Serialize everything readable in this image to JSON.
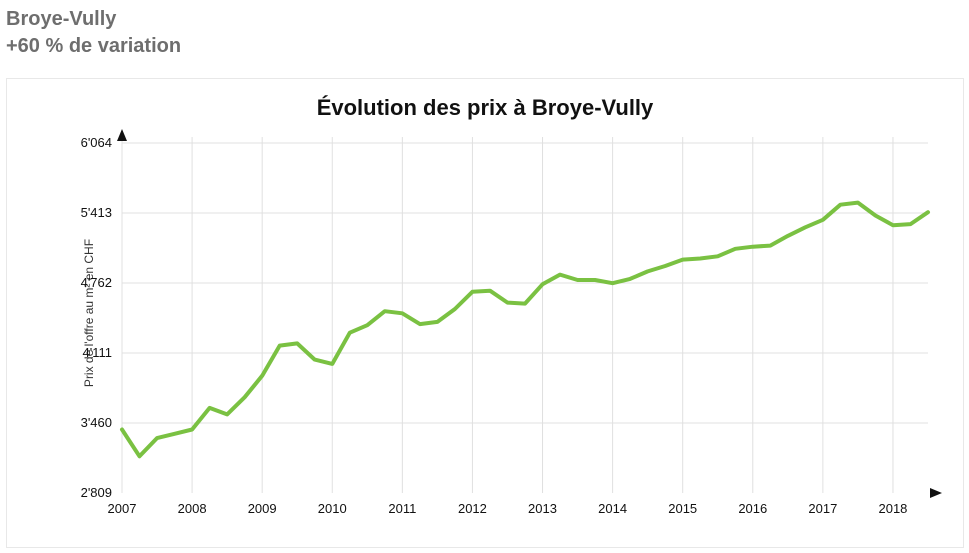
{
  "header": {
    "region_name": "Broye-Vully",
    "variation_text": "+60 % de variation",
    "text_color": "#6e6e6e"
  },
  "chart": {
    "type": "line",
    "title": "Évolution des prix à Broye-Vully",
    "title_fontsize": 22,
    "ylabel": "Prix de l'offre au m² en CHF",
    "label_fontsize": 12,
    "background_color": "#ffffff",
    "grid_color": "#e0e0e0",
    "border_color": "#e8e8e8",
    "line_color": "#7ac142",
    "line_width": 4,
    "xlim": [
      2007,
      2018.5
    ],
    "ylim": [
      2809,
      6064
    ],
    "yticks": [
      2809,
      3460,
      4111,
      4762,
      5413,
      6064
    ],
    "ytick_labels": [
      "2'809",
      "3'460",
      "4'111",
      "4'762",
      "5'413",
      "6'064"
    ],
    "xticks": [
      2007,
      2008,
      2009,
      2010,
      2011,
      2012,
      2013,
      2014,
      2015,
      2016,
      2017,
      2018
    ],
    "xtick_labels": [
      "2007",
      "2008",
      "2009",
      "2010",
      "2011",
      "2012",
      "2013",
      "2014",
      "2015",
      "2016",
      "2017",
      "2018"
    ],
    "series": {
      "x": [
        2007.0,
        2007.25,
        2007.5,
        2007.75,
        2008.0,
        2008.25,
        2008.5,
        2008.75,
        2009.0,
        2009.25,
        2009.5,
        2009.75,
        2010.0,
        2010.25,
        2010.5,
        2010.75,
        2011.0,
        2011.25,
        2011.5,
        2011.75,
        2012.0,
        2012.25,
        2012.5,
        2012.75,
        2013.0,
        2013.25,
        2013.5,
        2013.75,
        2014.0,
        2014.25,
        2014.5,
        2014.75,
        2015.0,
        2015.25,
        2015.5,
        2015.75,
        2016.0,
        2016.25,
        2016.5,
        2016.75,
        2017.0,
        2017.25,
        2017.5,
        2017.75,
        2018.0,
        2018.25,
        2018.5
      ],
      "y": [
        3400,
        3150,
        3320,
        3360,
        3400,
        3600,
        3540,
        3700,
        3900,
        4180,
        4200,
        4050,
        4010,
        4300,
        4370,
        4500,
        4480,
        4380,
        4400,
        4520,
        4680,
        4690,
        4580,
        4570,
        4750,
        4840,
        4790,
        4790,
        4760,
        4800,
        4870,
        4920,
        4980,
        4990,
        5010,
        5080,
        5100,
        5110,
        5200,
        5280,
        5350,
        5490,
        5510,
        5390,
        5300,
        5310,
        5420
      ]
    }
  }
}
